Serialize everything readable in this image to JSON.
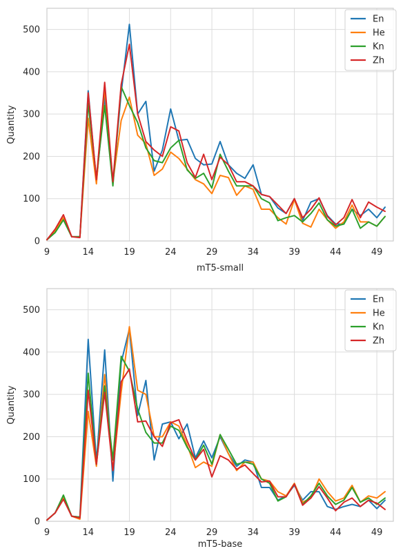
{
  "chart_data": [
    {
      "type": "line",
      "xlabel": "mT5-small",
      "ylabel": "Quantity",
      "xlim": [
        9,
        51
      ],
      "ylim": [
        0,
        550
      ],
      "x_ticks": [
        9,
        14,
        19,
        24,
        29,
        34,
        39,
        44,
        49
      ],
      "y_ticks": [
        0,
        100,
        200,
        300,
        400,
        500
      ],
      "grid": true,
      "legend_position": "top-right",
      "x": [
        9,
        10,
        11,
        12,
        13,
        14,
        15,
        16,
        17,
        18,
        19,
        20,
        21,
        22,
        23,
        24,
        25,
        26,
        27,
        28,
        29,
        30,
        31,
        32,
        33,
        34,
        35,
        36,
        37,
        38,
        39,
        40,
        41,
        42,
        43,
        44,
        45,
        46,
        47,
        48,
        49,
        50
      ],
      "series": [
        {
          "name": "En",
          "color": "#1f77b4",
          "values": [
            3,
            25,
            55,
            10,
            10,
            355,
            140,
            340,
            140,
            350,
            512,
            300,
            330,
            165,
            215,
            312,
            238,
            240,
            195,
            180,
            182,
            235,
            180,
            160,
            148,
            180,
            110,
            105,
            78,
            65,
            100,
            48,
            92,
            100,
            60,
            40,
            40,
            75,
            60,
            75,
            55,
            80
          ]
        },
        {
          "name": "He",
          "color": "#ff7f0e",
          "values": [
            3,
            25,
            55,
            10,
            10,
            290,
            135,
            360,
            140,
            285,
            340,
            250,
            230,
            155,
            170,
            210,
            195,
            170,
            145,
            135,
            112,
            155,
            150,
            108,
            130,
            122,
            75,
            75,
            55,
            40,
            98,
            42,
            33,
            75,
            50,
            30,
            45,
            85,
            45,
            45,
            35,
            58
          ]
        },
        {
          "name": "Kn",
          "color": "#2ca02c",
          "values": [
            3,
            20,
            50,
            10,
            10,
            325,
            150,
            320,
            130,
            365,
            320,
            280,
            220,
            190,
            185,
            220,
            238,
            168,
            148,
            160,
            125,
            205,
            165,
            130,
            130,
            130,
            100,
            90,
            48,
            55,
            60,
            45,
            65,
            90,
            50,
            35,
            40,
            75,
            30,
            45,
            35,
            58
          ]
        },
        {
          "name": "Zh",
          "color": "#d62728",
          "values": [
            3,
            28,
            62,
            10,
            8,
            350,
            145,
            375,
            140,
            370,
            465,
            300,
            235,
            215,
            200,
            270,
            260,
            185,
            150,
            205,
            145,
            198,
            180,
            140,
            140,
            130,
            110,
            105,
            85,
            65,
            100,
            55,
            75,
            102,
            58,
            38,
            55,
            98,
            55,
            92,
            80,
            70
          ]
        }
      ]
    },
    {
      "type": "line",
      "xlabel": "mT5-base",
      "ylabel": "Quantity",
      "xlim": [
        9,
        51
      ],
      "ylim": [
        0,
        550
      ],
      "x_ticks": [
        9,
        14,
        19,
        24,
        29,
        34,
        39,
        44,
        49
      ],
      "y_ticks": [
        0,
        100,
        200,
        300,
        400,
        500
      ],
      "grid": true,
      "legend_position": "top-right",
      "x": [
        9,
        10,
        11,
        12,
        13,
        14,
        15,
        16,
        17,
        18,
        19,
        20,
        21,
        22,
        23,
        24,
        25,
        26,
        27,
        28,
        29,
        30,
        31,
        32,
        33,
        34,
        35,
        36,
        37,
        38,
        39,
        40,
        41,
        42,
        43,
        44,
        45,
        46,
        47,
        48,
        49,
        50
      ],
      "series": [
        {
          "name": "En",
          "color": "#1f77b4",
          "values": [
            3,
            20,
            60,
            12,
            10,
            430,
            140,
            405,
            95,
            375,
            455,
            250,
            333,
            145,
            230,
            235,
            195,
            230,
            150,
            190,
            150,
            200,
            160,
            130,
            145,
            140,
            80,
            80,
            50,
            60,
            85,
            50,
            70,
            70,
            35,
            28,
            35,
            40,
            35,
            50,
            30,
            50
          ]
        },
        {
          "name": "He",
          "color": "#ff7f0e",
          "values": [
            3,
            20,
            55,
            12,
            5,
            260,
            130,
            347,
            120,
            305,
            460,
            310,
            300,
            200,
            200,
            235,
            225,
            180,
            127,
            140,
            130,
            205,
            160,
            120,
            140,
            140,
            100,
            95,
            70,
            60,
            90,
            45,
            55,
            100,
            70,
            48,
            55,
            85,
            45,
            60,
            55,
            70
          ]
        },
        {
          "name": "Kn",
          "color": "#2ca02c",
          "values": [
            3,
            20,
            62,
            12,
            10,
            350,
            135,
            320,
            145,
            390,
            355,
            265,
            210,
            185,
            185,
            225,
            215,
            175,
            145,
            180,
            135,
            205,
            170,
            135,
            140,
            135,
            100,
            90,
            48,
            58,
            88,
            40,
            60,
            90,
            60,
            40,
            50,
            80,
            45,
            55,
            40,
            55
          ]
        },
        {
          "name": "Zh",
          "color": "#d62728",
          "values": [
            3,
            20,
            52,
            12,
            8,
            310,
            135,
            305,
            120,
            330,
            360,
            235,
            237,
            200,
            177,
            233,
            240,
            190,
            145,
            170,
            105,
            155,
            145,
            123,
            133,
            113,
            93,
            95,
            58,
            58,
            88,
            38,
            55,
            82,
            55,
            25,
            45,
            55,
            35,
            50,
            43,
            28
          ]
        }
      ]
    }
  ]
}
